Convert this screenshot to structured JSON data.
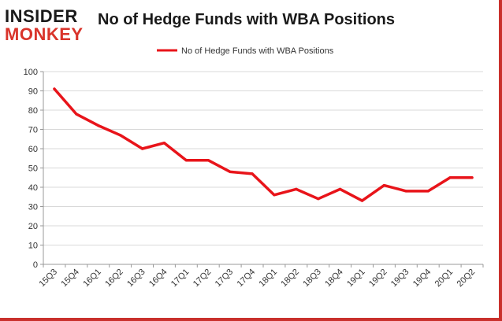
{
  "logo": {
    "line1": "INSIDER",
    "line2": "MONKEY"
  },
  "chart_data": {
    "type": "line",
    "title": "No of Hedge Funds with WBA Positions",
    "xlabel": "",
    "ylabel": "",
    "ylim": [
      0,
      100
    ],
    "yticks": [
      0,
      10,
      20,
      30,
      40,
      50,
      60,
      70,
      80,
      90,
      100
    ],
    "grid": true,
    "legend_position": "top-center",
    "categories": [
      "15Q3",
      "15Q4",
      "16Q1",
      "16Q2",
      "16Q3",
      "16Q4",
      "17Q1",
      "17Q2",
      "17Q3",
      "17Q4",
      "18Q1",
      "18Q2",
      "18Q3",
      "18Q4",
      "19Q1",
      "19Q2",
      "19Q3",
      "19Q4",
      "20Q1",
      "20Q2"
    ],
    "series": [
      {
        "name": "No of Hedge Funds with WBA Positions",
        "color": "#e8141a",
        "values": [
          91,
          78,
          72,
          67,
          60,
          63,
          54,
          54,
          48,
          47,
          36,
          39,
          34,
          39,
          33,
          41,
          38,
          38,
          45,
          45
        ]
      }
    ]
  }
}
